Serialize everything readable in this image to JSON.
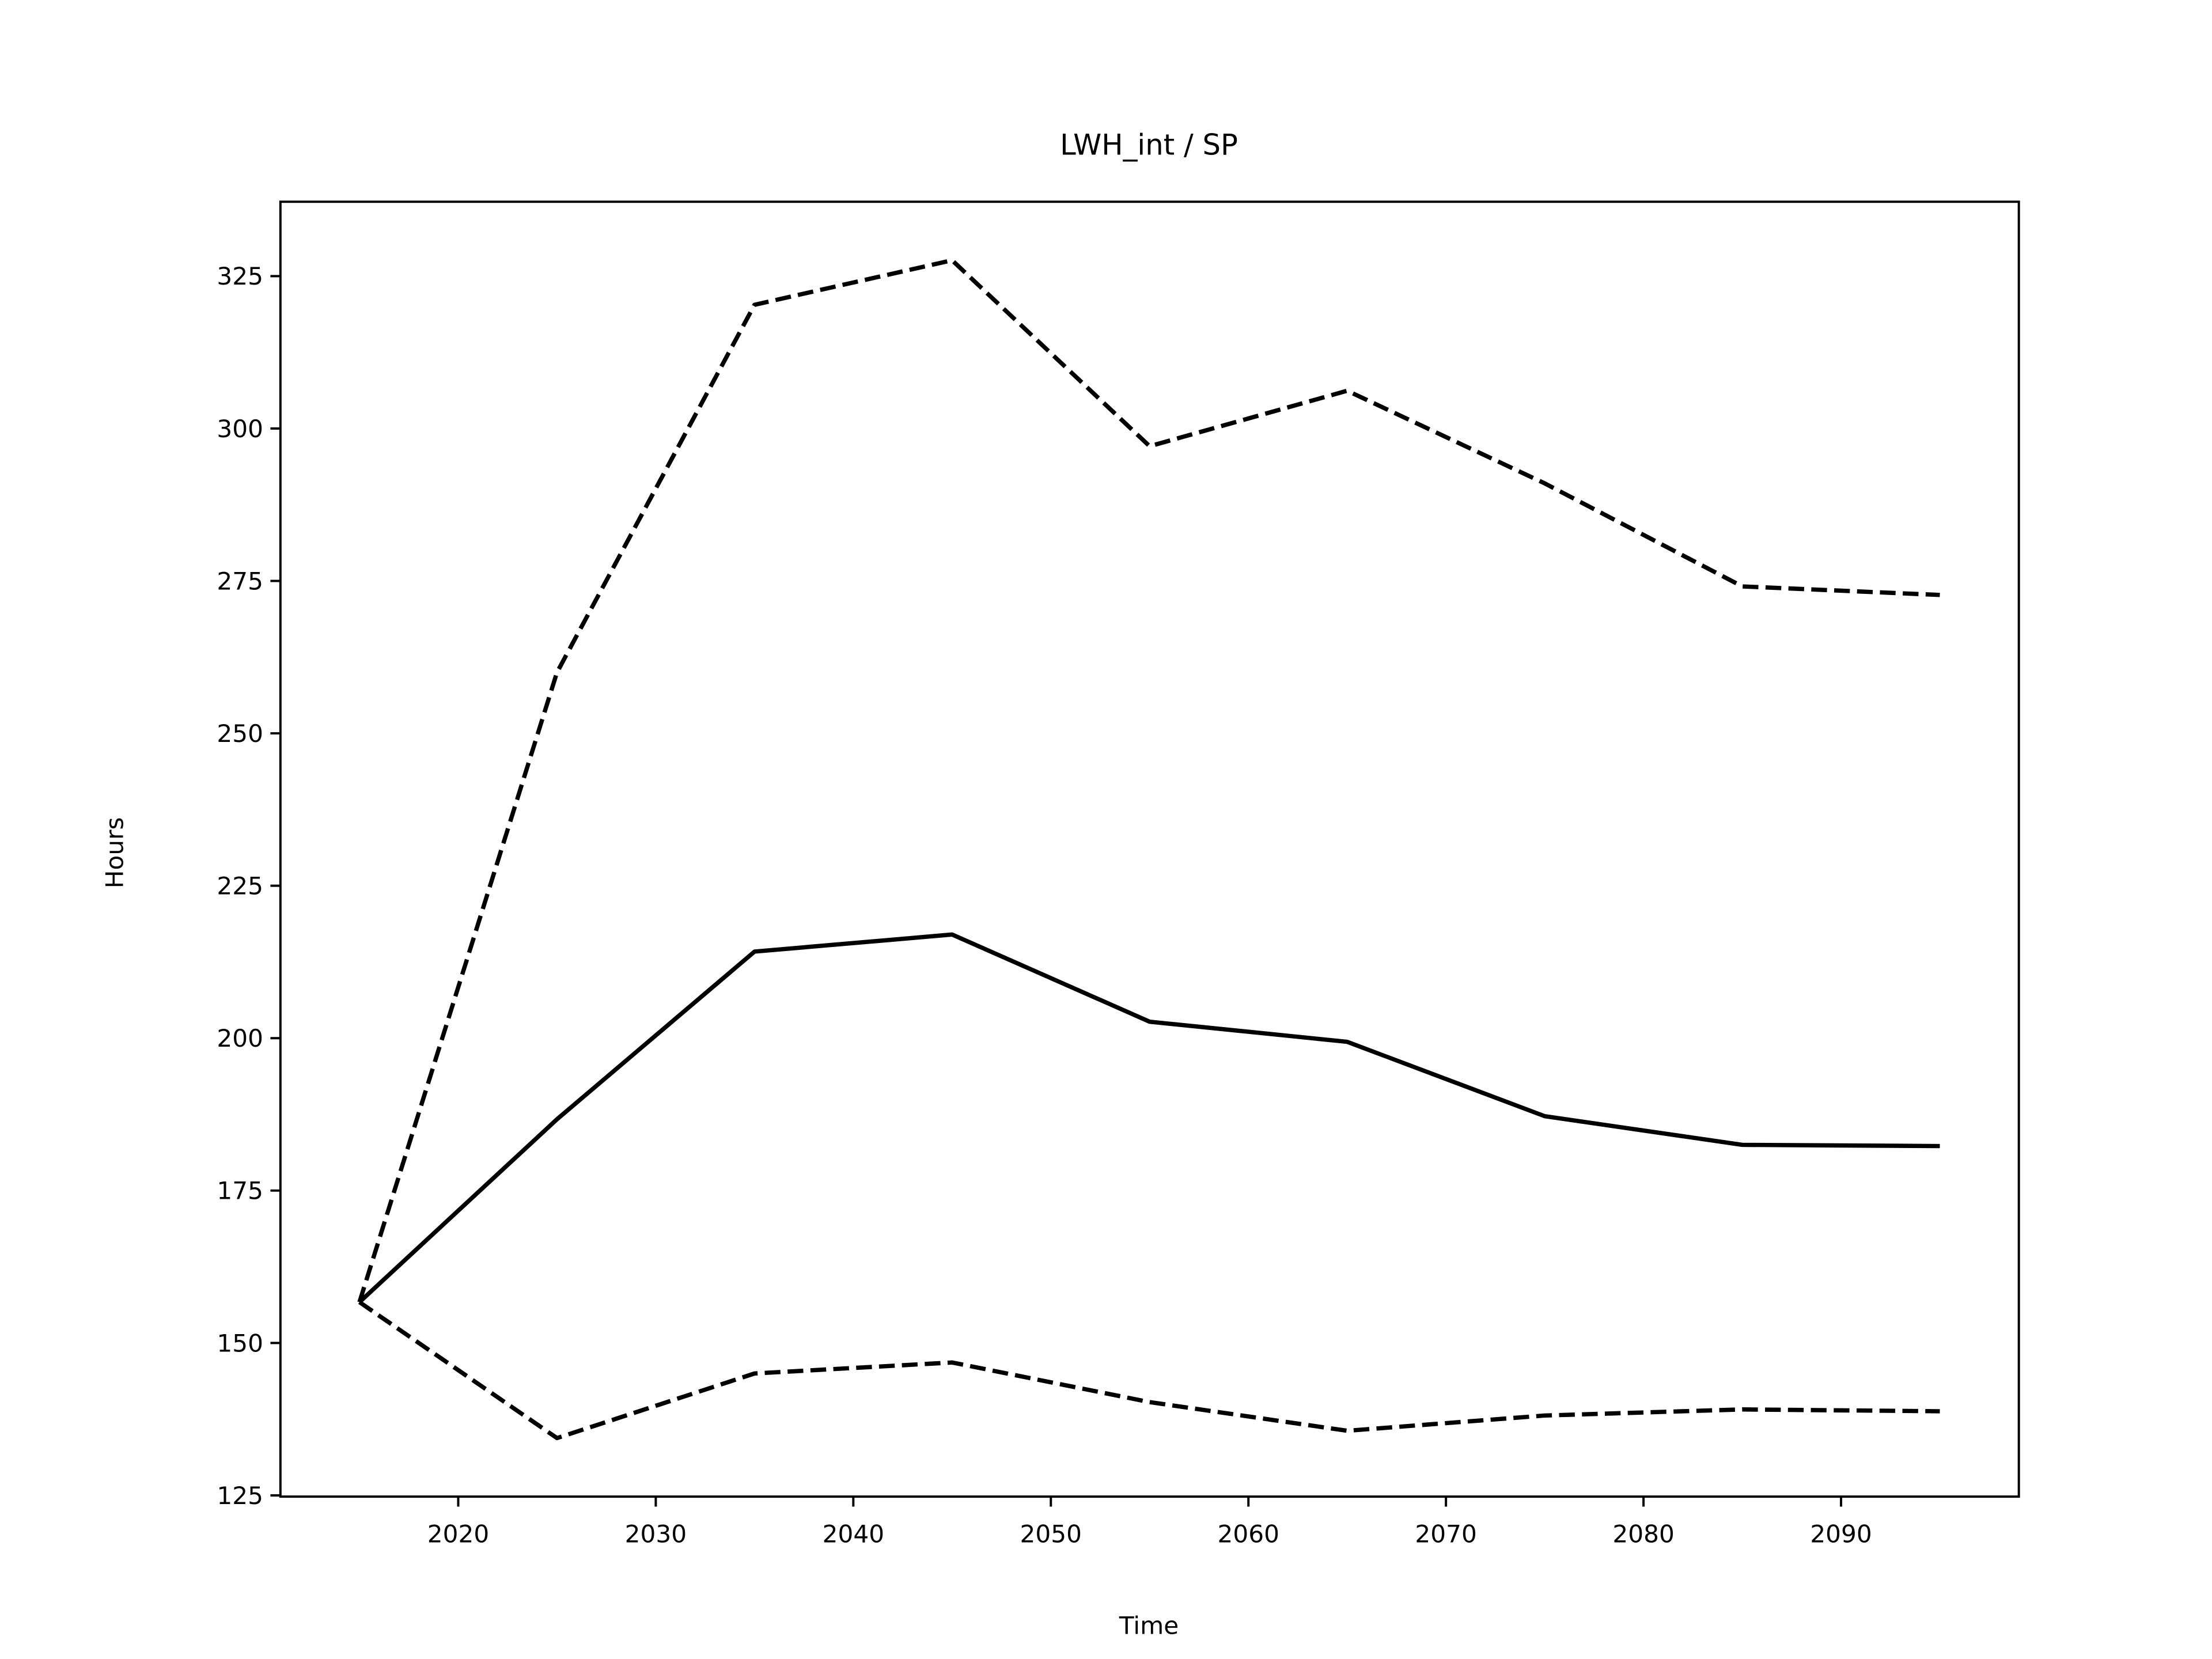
{
  "chart_data": {
    "type": "line",
    "title": "LWH_int / SP",
    "xlabel": "Time",
    "ylabel": "Hours",
    "x": [
      2015,
      2025,
      2035,
      2045,
      2055,
      2065,
      2075,
      2085,
      2095
    ],
    "series": [
      {
        "color": "#000000",
        "dashed": false,
        "values": [
          156.7,
          186.7,
          214.2,
          217.0,
          202.7,
          199.4,
          187.2,
          182.5,
          182.3
        ]
      },
      {
        "color": "#000000",
        "dashed": true,
        "values": [
          156.7,
          260.0,
          320.3,
          327.6,
          297.1,
          306.2,
          291.0,
          274.1,
          272.7
        ]
      },
      {
        "color": "#000000",
        "dashed": true,
        "values": [
          156.7,
          134.4,
          145.0,
          146.8,
          140.3,
          135.6,
          138.1,
          139.1,
          138.8
        ]
      }
    ],
    "xlim": [
      2011,
      2099
    ],
    "xticks": [
      2020,
      2030,
      2040,
      2050,
      2060,
      2070,
      2080,
      2090
    ],
    "ylim": [
      124.8,
      337.2
    ],
    "yticks": [
      125,
      150,
      175,
      200,
      225,
      250,
      275,
      300,
      325
    ],
    "grid": false
  }
}
